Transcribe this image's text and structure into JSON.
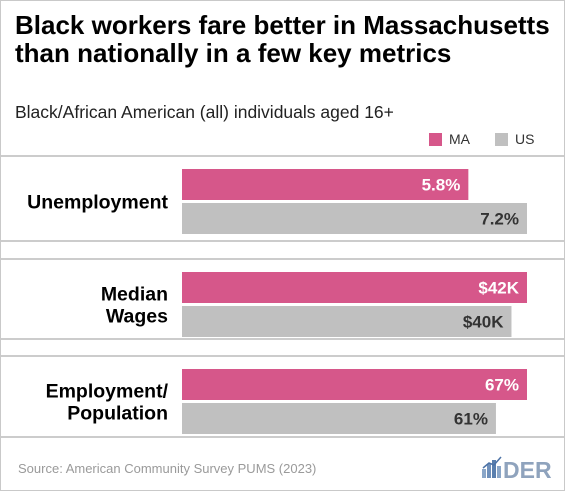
{
  "title": "Black workers fare better in Massachusetts than nationally in a few key metrics",
  "subtitle": "Black/African American (all) individuals aged 16+",
  "source": "Source: American Community Survey PUMS (2023)",
  "logo": {
    "icon": "bar-chart-icon",
    "text": "DER"
  },
  "chart_data": {
    "type": "bar",
    "orientation": "horizontal",
    "legend_placement": "top-right",
    "legend": [
      {
        "name": "MA",
        "color": "#d6578a"
      },
      {
        "name": "US",
        "color": "#c0c0c0"
      }
    ],
    "groups": [
      {
        "category_lines": [
          "Unemployment"
        ],
        "bars": [
          {
            "series": "MA",
            "value": 5.8,
            "fraction": 0.83,
            "label": "5.8%"
          },
          {
            "series": "US",
            "value": 7.2,
            "fraction": 1.0,
            "label": "7.2%"
          }
        ]
      },
      {
        "category_lines": [
          "Median",
          "Wages"
        ],
        "bars": [
          {
            "series": "MA",
            "value": 42,
            "fraction": 1.0,
            "label": "$42K"
          },
          {
            "series": "US",
            "value": 40,
            "fraction": 0.955,
            "label": "$40K"
          }
        ]
      },
      {
        "category_lines": [
          "Employment/",
          "Population"
        ],
        "bars": [
          {
            "series": "MA",
            "value": 67,
            "fraction": 1.0,
            "label": "67%"
          },
          {
            "series": "US",
            "value": 61,
            "fraction": 0.91,
            "label": "61%"
          }
        ]
      }
    ],
    "grid": false
  }
}
